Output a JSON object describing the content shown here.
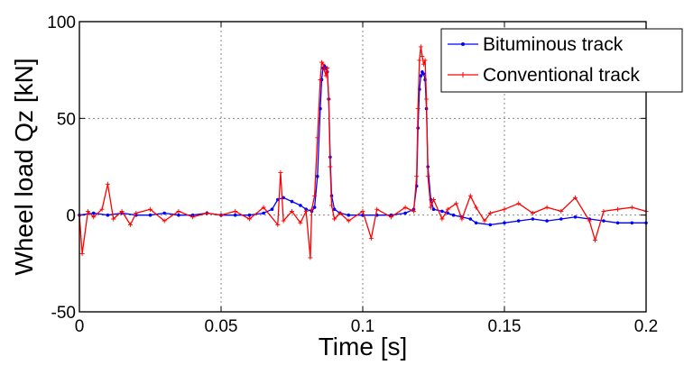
{
  "chart_data": {
    "type": "line",
    "xlabel": "Time [s]",
    "ylabel": "Wheel load Qz [kN]",
    "xlim": [
      0,
      0.2
    ],
    "ylim": [
      -50,
      100
    ],
    "x_ticks": [
      0,
      0.05,
      0.1,
      0.15,
      0.2
    ],
    "x_tick_labels": [
      "0",
      "0.05",
      "0.1",
      "0.15",
      "0.2"
    ],
    "y_ticks": [
      -50,
      0,
      50,
      100
    ],
    "y_tick_labels": [
      "-50",
      "0",
      "50",
      "100"
    ],
    "grid": true,
    "legend_position": "top-right",
    "series": [
      {
        "name": "Bituminous track",
        "color": "#0000ff",
        "marker": "dot",
        "x": [
          0,
          0.005,
          0.01,
          0.015,
          0.02,
          0.025,
          0.03,
          0.035,
          0.04,
          0.045,
          0.05,
          0.055,
          0.06,
          0.065,
          0.068,
          0.07,
          0.072,
          0.075,
          0.078,
          0.08,
          0.082,
          0.083,
          0.084,
          0.085,
          0.0855,
          0.086,
          0.0865,
          0.087,
          0.0875,
          0.088,
          0.0885,
          0.089,
          0.09,
          0.092,
          0.095,
          0.1,
          0.105,
          0.11,
          0.115,
          0.118,
          0.119,
          0.1195,
          0.12,
          0.1205,
          0.121,
          0.1215,
          0.122,
          0.1225,
          0.123,
          0.124,
          0.125,
          0.128,
          0.13,
          0.132,
          0.135,
          0.138,
          0.14,
          0.145,
          0.15,
          0.155,
          0.16,
          0.165,
          0.17,
          0.175,
          0.18,
          0.185,
          0.19,
          0.195,
          0.2
        ],
        "y": [
          0,
          1,
          0,
          1,
          0,
          0,
          1,
          0,
          0,
          1,
          0,
          0,
          0,
          1,
          3,
          8,
          9,
          7,
          5,
          3,
          2,
          4,
          20,
          55,
          70,
          76,
          77,
          76,
          74,
          60,
          30,
          10,
          3,
          1,
          0,
          0,
          0,
          0,
          1,
          3,
          15,
          45,
          65,
          72,
          74,
          73,
          70,
          55,
          25,
          8,
          3,
          2,
          1,
          0,
          -1,
          -2,
          -4,
          -5,
          -4,
          -3,
          -2,
          -3,
          -2,
          -1,
          -2,
          -3,
          -4,
          -4,
          -4
        ]
      },
      {
        "name": "Conventional track",
        "color": "#ff0000",
        "marker": "plus",
        "x": [
          0,
          0.001,
          0.003,
          0.005,
          0.008,
          0.01,
          0.012,
          0.015,
          0.018,
          0.02,
          0.025,
          0.03,
          0.035,
          0.04,
          0.045,
          0.05,
          0.055,
          0.06,
          0.065,
          0.07,
          0.071,
          0.072,
          0.075,
          0.078,
          0.08,
          0.0815,
          0.082,
          0.083,
          0.084,
          0.085,
          0.0855,
          0.086,
          0.0865,
          0.087,
          0.0875,
          0.088,
          0.0885,
          0.089,
          0.09,
          0.092,
          0.095,
          0.1,
          0.103,
          0.105,
          0.11,
          0.115,
          0.118,
          0.119,
          0.1195,
          0.12,
          0.1205,
          0.121,
          0.1215,
          0.122,
          0.1225,
          0.123,
          0.124,
          0.125,
          0.128,
          0.13,
          0.133,
          0.135,
          0.138,
          0.14,
          0.143,
          0.145,
          0.15,
          0.155,
          0.16,
          0.165,
          0.17,
          0.175,
          0.18,
          0.182,
          0.185,
          0.19,
          0.195,
          0.2
        ],
        "y": [
          0,
          -20,
          2,
          -1,
          3,
          16,
          -2,
          2,
          -5,
          1,
          3,
          -3,
          2,
          -1,
          1,
          0,
          2,
          -2,
          4,
          -5,
          22,
          -3,
          2,
          -4,
          2,
          -22,
          3,
          10,
          40,
          70,
          79,
          78,
          75,
          72,
          76,
          60,
          25,
          5,
          -2,
          1,
          -3,
          2,
          -12,
          3,
          -1,
          4,
          2,
          20,
          55,
          80,
          87,
          82,
          78,
          80,
          60,
          20,
          4,
          8,
          -2,
          3,
          6,
          -2,
          10,
          4,
          -3,
          1,
          3,
          6,
          1,
          4,
          2,
          9,
          -3,
          -13,
          2,
          3,
          4,
          2
        ]
      }
    ]
  }
}
